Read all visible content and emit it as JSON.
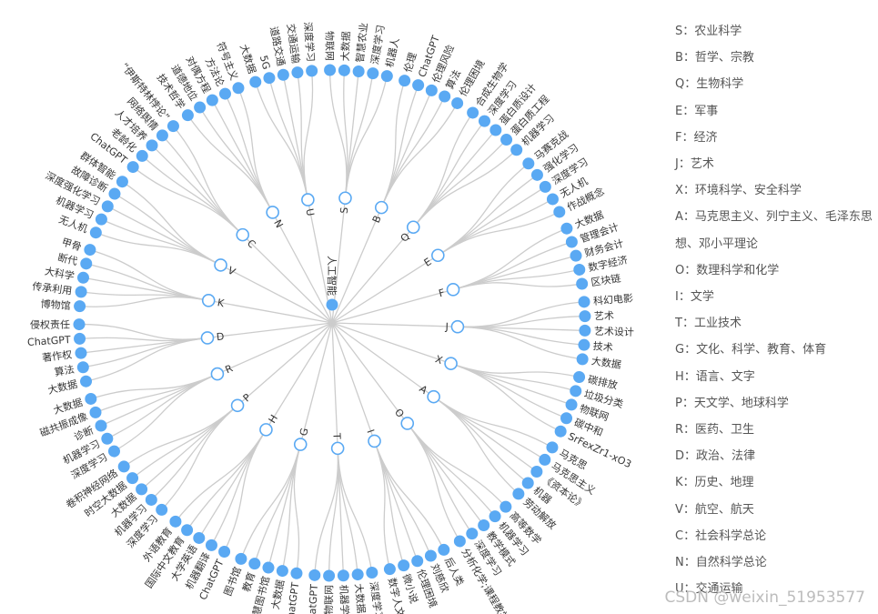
{
  "colors": {
    "line": "#cccccc",
    "leaf": "#5aa9f3",
    "branch_stroke": "#5aa9f3",
    "branch_fill": "#ffffff",
    "text": "#333333"
  },
  "chart_data": {
    "type": "radial-tree",
    "root": "人工智能",
    "branches": [
      {
        "name": "S",
        "children": [
          "物联网",
          "大数据",
          "智慧农业",
          "深度学习",
          "机器人"
        ]
      },
      {
        "name": "B",
        "children": [
          "伦理",
          "ChatGPT",
          "伦理风险",
          "算法",
          "伦理困境"
        ]
      },
      {
        "name": "Q",
        "children": [
          "合成生物学",
          "深度学习",
          "蛋白质设计",
          "蛋白质工程",
          "机器学习"
        ]
      },
      {
        "name": "E",
        "children": [
          "马赛克战",
          "强化学习",
          "深度学习",
          "无人机",
          "作战概念"
        ]
      },
      {
        "name": "F",
        "children": [
          "大数据",
          "管理会计",
          "财务会计",
          "数字经济",
          "区块链"
        ]
      },
      {
        "name": "J",
        "children": [
          "科幻电影",
          "艺术",
          "艺术设计",
          "技术",
          "大数据"
        ]
      },
      {
        "name": "X",
        "children": [
          "碳排放",
          "垃圾分类",
          "物联网",
          "碳中和",
          "SrFexZr1-xO3"
        ]
      },
      {
        "name": "A",
        "children": [
          "马克思",
          "马克思主义",
          "《资本论》",
          "机器",
          "劳动解放"
        ]
      },
      {
        "name": "O",
        "children": [
          "高等数学",
          "机器学习",
          "教学模式",
          "深度学习",
          "分析化学;课程教学"
        ]
      },
      {
        "name": "I",
        "children": [
          "后人类",
          "刘慈欣",
          "伦理困境",
          "微小说",
          "数字人文"
        ]
      },
      {
        "name": "T",
        "children": [
          "深度学习",
          "大数据",
          "机器学习",
          "物联网",
          "ChatGPT"
        ]
      },
      {
        "name": "G",
        "children": [
          "ChatGPT",
          "大数据",
          "智慧图书馆",
          "教育",
          "图书馆"
        ]
      },
      {
        "name": "H",
        "children": [
          "ChatGPT",
          "机器翻译",
          "大学英语",
          "国际中文教育",
          "外语教育"
        ]
      },
      {
        "name": "P",
        "children": [
          "深度学习",
          "机器学习",
          "大数据",
          "时空大数据",
          "卷积神经网络"
        ]
      },
      {
        "name": "R",
        "children": [
          "深度学习",
          "机器学习",
          "诊断",
          "磁共振成像",
          "大数据"
        ]
      },
      {
        "name": "D",
        "children": [
          "大数据",
          "算法",
          "著作权",
          "ChatGPT",
          "侵权责任"
        ]
      },
      {
        "name": "K",
        "children": [
          "博物馆",
          "传承利用",
          "大科学",
          "断代",
          "甲骨"
        ]
      },
      {
        "name": "V",
        "children": [
          "无人机",
          "机器学习",
          "深度强化学习",
          "故障诊断",
          "群体智能"
        ]
      },
      {
        "name": "C",
        "children": [
          "ChatGPT",
          "老龄化",
          "人才培养",
          "网络舆情",
          "“伊斯特林悖论”"
        ]
      },
      {
        "name": "N",
        "children": [
          "技术哲学",
          "道德地位",
          "对偶方程",
          "方法论",
          "符号主义"
        ]
      },
      {
        "name": "U",
        "children": [
          "大数据",
          "5G",
          "道路交通",
          "交通运输",
          "深度学习"
        ]
      }
    ]
  },
  "legend": [
    "S：农业科学",
    "B：哲学、宗教",
    "Q：生物科学",
    "E：军事",
    "F：经济",
    "J：艺术",
    "X：环境科学、安全科学",
    "A：马克思主义、列宁主义、毛泽东思想、邓小平理论",
    "O：数理科学和化学",
    "I：文学",
    "T：工业技术",
    "G：文化、科学、教育、体育",
    "H：语言、文字",
    "P：天文学、地球科学",
    "R：医药、卫生",
    "D：政治、法律",
    "K：历史、地理",
    "V：航空、航天",
    "C：社会科学总论",
    "N：自然科学总论",
    "U：交通运输"
  ],
  "watermark": "CSDN @weixin_51953577"
}
